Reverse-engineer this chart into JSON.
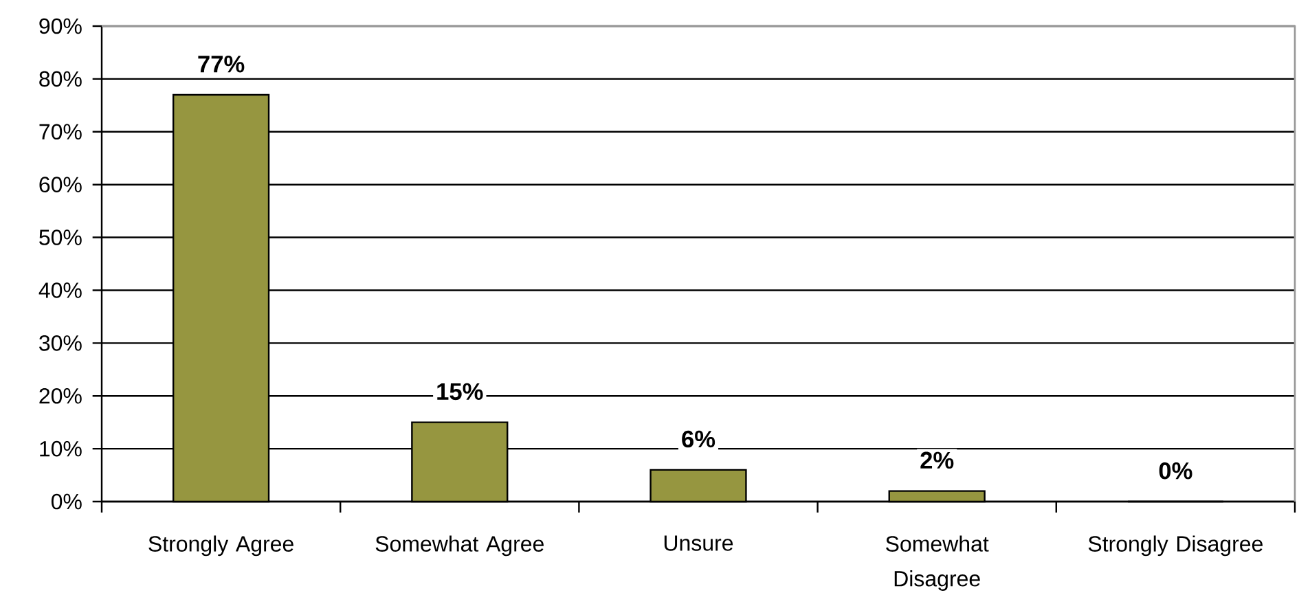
{
  "chart_data": {
    "type": "bar",
    "categories": [
      "Strongly Agree",
      "Somewhat Agree",
      "Unsure",
      "Somewhat Disagree",
      "Strongly Disagree"
    ],
    "values": [
      77,
      15,
      6,
      2,
      0
    ],
    "value_labels": [
      "77%",
      "15%",
      "6%",
      "2%",
      "0%"
    ],
    "color": "#969640",
    "ylim": [
      0,
      90
    ],
    "yticks": [
      {
        "value": 0,
        "label": "0%"
      },
      {
        "value": 10,
        "label": "10%"
      },
      {
        "value": 20,
        "label": "20%"
      },
      {
        "value": 30,
        "label": "30%"
      },
      {
        "value": 40,
        "label": "40%"
      },
      {
        "value": 50,
        "label": "50%"
      },
      {
        "value": 60,
        "label": "60%"
      },
      {
        "value": 70,
        "label": "70%"
      },
      {
        "value": 80,
        "label": "80%"
      },
      {
        "value": 90,
        "label": "90%"
      }
    ],
    "grid": "y"
  }
}
